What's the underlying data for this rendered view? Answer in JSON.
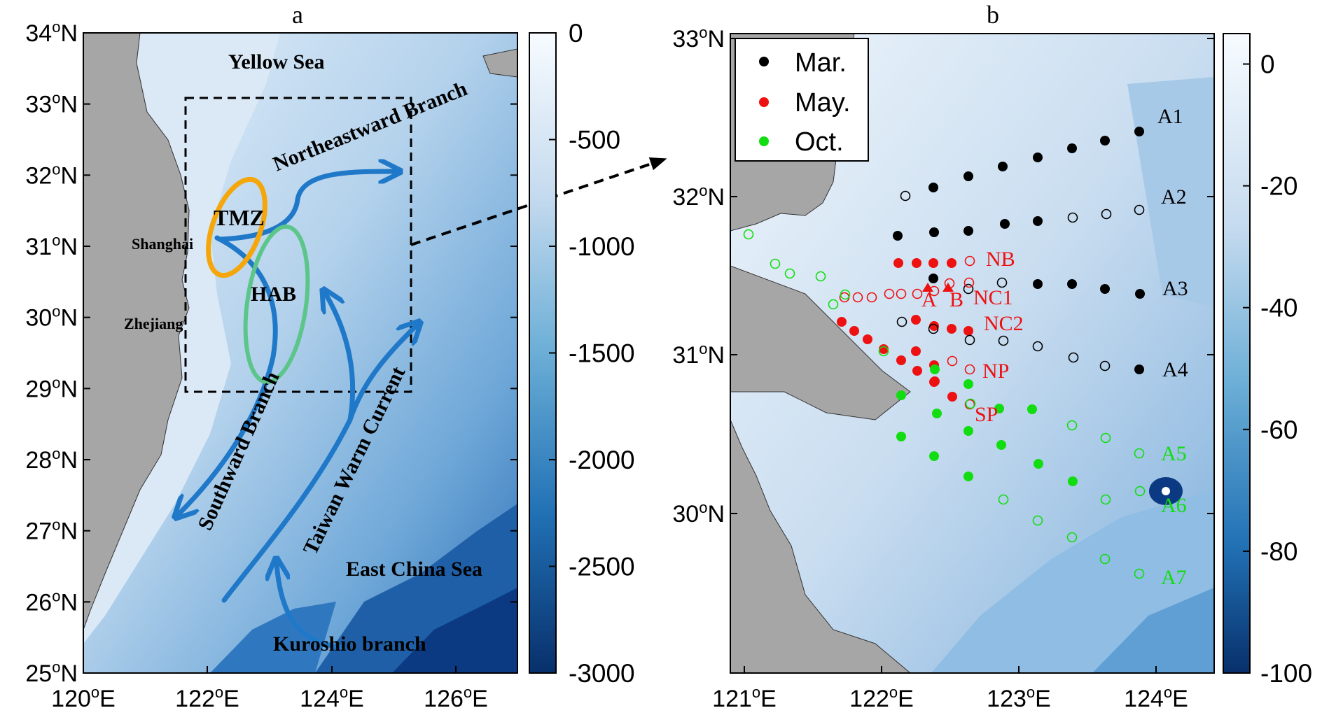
{
  "panel_a": {
    "label": "a",
    "lat_labels": [
      "34",
      "33",
      "32",
      "31",
      "30",
      "29",
      "28",
      "27",
      "26",
      "25"
    ],
    "lon_labels": [
      "120",
      "122",
      "124",
      "126"
    ],
    "lat_suffix": "N",
    "lon_suffix": "E",
    "colorbar": {
      "ticks": [
        "0",
        "-500",
        "-1000",
        "-1500",
        "-2000",
        "-2500",
        "-3000"
      ],
      "min": -3000,
      "max": 0
    },
    "labels": {
      "yellow_sea": "Yellow Sea",
      "northeastward": "Northeastward Branch",
      "tmz": "TMZ",
      "shanghai": "Shanghai",
      "hab": "HAB",
      "zhejiang": "Zhejiang",
      "southward": "Southward Branch",
      "taiwan": "Taiwan Warm Current",
      "ecs": "East China Sea",
      "kuroshio": "Kuroshio branch"
    }
  },
  "panel_b": {
    "label": "b",
    "lat_labels": [
      "33",
      "32",
      "31",
      "30"
    ],
    "lon_labels": [
      "121",
      "122",
      "123",
      "124"
    ],
    "lat_suffix": "N",
    "lon_suffix": "E",
    "colorbar": {
      "ticks": [
        "0",
        "-20",
        "-40",
        "-60",
        "-80",
        "-100"
      ],
      "min": -100,
      "max": 5
    },
    "legend": [
      {
        "label": "Mar.",
        "color": "#000000"
      },
      {
        "label": "May.",
        "color": "#ee1111"
      },
      {
        "label": "Oct.",
        "color": "#11dd11"
      }
    ],
    "section_labels": {
      "A1": "A1",
      "A2": "A2",
      "A3": "A3",
      "A4": "A4",
      "A5": "A5",
      "A6": "A6",
      "A7": "A7",
      "NB": "NB",
      "NC1": "NC1",
      "NC2": "NC2",
      "NP": "NP",
      "SP": "SP",
      "A": "A",
      "B": "B"
    }
  },
  "colors": {
    "land": "#a6a6a6",
    "shallow": "#dbe9f6",
    "shelf": "#a9cbe7",
    "deep": "#1f5fa8",
    "abyss": "#0b3a82",
    "current": "#1f78c8",
    "tmz": "#f5a60a",
    "hab": "#5cc58a"
  }
}
